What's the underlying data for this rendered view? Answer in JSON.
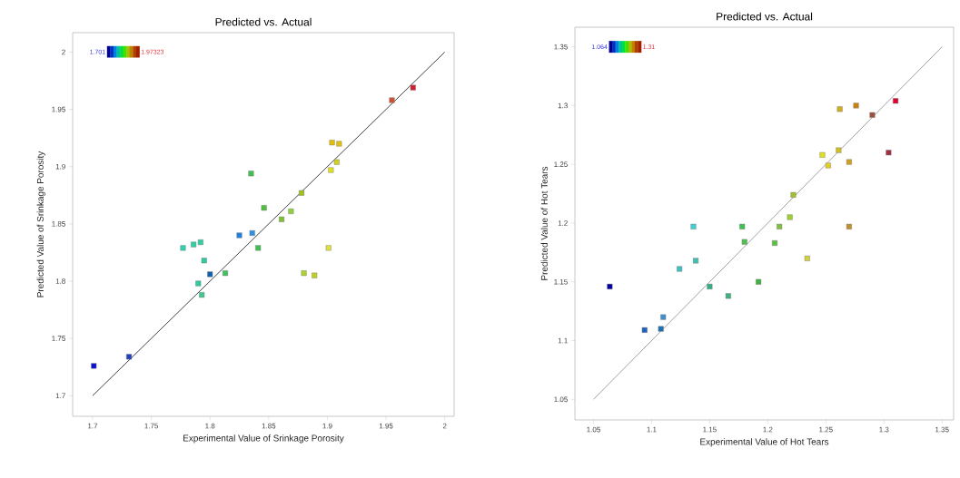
{
  "chart_data": [
    {
      "type": "scatter",
      "title": "Predicted vs. Actual",
      "xlabel": "Experimental Value of Srinkage Porosity",
      "ylabel": "Predicted Value of Srinkage Porosity",
      "xlim": [
        1.683,
        2.008
      ],
      "ylim": [
        1.682,
        2.017
      ],
      "xticks": [
        1.7,
        1.75,
        1.8,
        1.85,
        1.9,
        1.95,
        2
      ],
      "yticks": [
        1.7,
        1.75,
        1.8,
        1.85,
        1.9,
        1.95,
        2
      ],
      "annotations": [
        "1.701",
        "1.97323"
      ],
      "series": [
        {
          "type": "line",
          "color": "#404040",
          "x": [
            1.7,
            2
          ],
          "values": [
            1.7,
            2
          ]
        },
        {
          "marker": "square",
          "x": [
            1.701,
            1.731,
            1.777,
            1.786,
            1.792,
            1.795,
            1.79,
            1.793,
            1.8,
            1.813,
            1.825,
            1.836,
            1.835,
            1.841,
            1.846,
            1.861,
            1.869,
            1.878,
            1.88,
            1.889,
            1.901,
            1.903,
            1.908,
            1.904,
            1.91,
            1.955,
            1.973
          ],
          "values": [
            1.726,
            1.734,
            1.829,
            1.832,
            1.834,
            1.818,
            1.798,
            1.788,
            1.806,
            1.807,
            1.84,
            1.842,
            1.894,
            1.829,
            1.864,
            1.854,
            1.861,
            1.877,
            1.807,
            1.805,
            1.829,
            1.897,
            1.904,
            1.921,
            1.92,
            1.958,
            1.969
          ],
          "colors": [
            "#1010d0",
            "#2040c0",
            "#30d0b0",
            "#30d0a0",
            "#30d0a0",
            "#30c8a0",
            "#30c8a0",
            "#40c890",
            "#1060b0",
            "#40c060",
            "#2080e0",
            "#3090e0",
            "#40c050",
            "#40c050",
            "#50c040",
            "#80c030",
            "#90d040",
            "#a0c020",
            "#b0d030",
            "#c0d020",
            "#e0e040",
            "#e0e020",
            "#d0d020",
            "#e0c000",
            "#e0c010",
            "#d05030",
            "#d02030"
          ]
        }
      ]
    },
    {
      "type": "scatter",
      "title": "Predicted vs. Actual",
      "xlabel": "Experimental Value of Hot Tears",
      "ylabel": "Predicted Value of Hot Tears",
      "xlim": [
        1.034,
        1.36
      ],
      "ylim": [
        1.0325,
        1.3667
      ],
      "xticks": [
        1.05,
        1.1,
        1.15,
        1.2,
        1.25,
        1.3,
        1.35
      ],
      "yticks": [
        1.05,
        1.1,
        1.15,
        1.2,
        1.25,
        1.3,
        1.35
      ],
      "annotations": [
        "1.064",
        "1.31"
      ],
      "series": [
        {
          "type": "line",
          "color": "#a0a0a0",
          "x": [
            1.05,
            1.35
          ],
          "values": [
            1.05,
            1.35
          ]
        },
        {
          "marker": "square",
          "x": [
            1.064,
            1.094,
            1.108,
            1.11,
            1.124,
            1.138,
            1.136,
            1.15,
            1.166,
            1.178,
            1.18,
            1.192,
            1.206,
            1.21,
            1.219,
            1.222,
            1.234,
            1.247,
            1.252,
            1.261,
            1.262,
            1.27,
            1.27,
            1.276,
            1.29,
            1.304,
            1.31
          ],
          "values": [
            1.146,
            1.109,
            1.11,
            1.12,
            1.161,
            1.168,
            1.197,
            1.146,
            1.138,
            1.197,
            1.184,
            1.15,
            1.183,
            1.197,
            1.205,
            1.224,
            1.17,
            1.258,
            1.249,
            1.262,
            1.297,
            1.252,
            1.197,
            1.3,
            1.292,
            1.26,
            1.304
          ],
          "colors": [
            "#0000a0",
            "#2060c0",
            "#2070b0",
            "#4090d0",
            "#40c0c0",
            "#40c0b0",
            "#40d0d0",
            "#30b080",
            "#40b080",
            "#40c050",
            "#50c050",
            "#40b040",
            "#60c040",
            "#80c040",
            "#a0d030",
            "#a0c030",
            "#d0d040",
            "#e0e020",
            "#e0d020",
            "#d0c020",
            "#d0b020",
            "#d0a020",
            "#c09030",
            "#d08010",
            "#a05040",
            "#a03040",
            "#e00030"
          ]
        }
      ]
    }
  ]
}
